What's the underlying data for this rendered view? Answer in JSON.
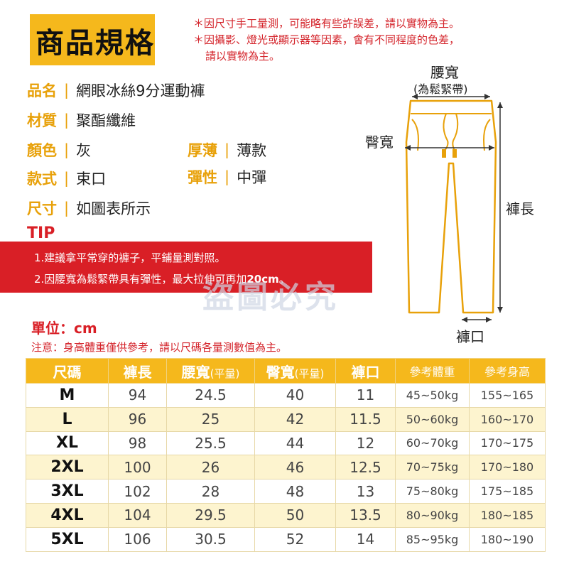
{
  "header": {
    "title": "商品規格"
  },
  "notes": [
    "＊因尺寸手工量測，可能略有些許誤差，請以實物為主。",
    "＊因攝影、燈光或顯示器等因素，會有不同程度的色差，",
    "請以實物為主。"
  ],
  "specs": {
    "name": {
      "label": "品名",
      "value": "網眼冰絲9分運動褲"
    },
    "material": {
      "label": "材質",
      "value": "聚酯纖維"
    },
    "color": {
      "label": "顏色",
      "value": "灰"
    },
    "thickness": {
      "label": "厚薄",
      "value": "薄款"
    },
    "style": {
      "label": "款式",
      "value": "束口"
    },
    "elasticity": {
      "label": "彈性",
      "value": "中彈"
    },
    "size": {
      "label": "尺寸",
      "value": "如圖表所示"
    },
    "separator": "|"
  },
  "tip": {
    "title": "TIP",
    "line1": "1.建議拿平常穿的褲子，平鋪量測對照。",
    "line2_prefix": "2.因腰寬為鬆緊帶具有彈性，最大拉伸可再加",
    "line2_bold": "20cm",
    "line2_suffix": "。"
  },
  "watermark": "盜圖必究",
  "diagram": {
    "waist": "腰寬",
    "waist_note": "(為鬆緊帶)",
    "hip": "臀寬",
    "length": "褲長",
    "hem": "褲口"
  },
  "unit": "單位：cm",
  "disclaimer": "注意：身高體重僅供參考，請以尺碼各量測數值為主。",
  "table": {
    "headers": {
      "size": "尺碼",
      "length": "褲長",
      "waist": "腰寬",
      "waist_sub": "(平量)",
      "hip": "臀寬",
      "hip_sub": "(平量)",
      "hem": "褲口",
      "weight": "參考體重",
      "height": "參考身高"
    },
    "rows": [
      {
        "size": "M",
        "length": "94",
        "waist": "24.5",
        "hip": "40",
        "hem": "11",
        "weight": "45~50kg",
        "height": "155~165"
      },
      {
        "size": "L",
        "length": "96",
        "waist": "25",
        "hip": "42",
        "hem": "11.5",
        "weight": "50~60kg",
        "height": "160~170"
      },
      {
        "size": "XL",
        "length": "98",
        "waist": "25.5",
        "hip": "44",
        "hem": "12",
        "weight": "60~70kg",
        "height": "170~175"
      },
      {
        "size": "2XL",
        "length": "100",
        "waist": "26",
        "hip": "46",
        "hem": "12.5",
        "weight": "70~75kg",
        "height": "170~180"
      },
      {
        "size": "3XL",
        "length": "102",
        "waist": "28",
        "hip": "48",
        "hem": "13",
        "weight": "75~80kg",
        "height": "175~185"
      },
      {
        "size": "4XL",
        "length": "104",
        "waist": "29.5",
        "hip": "50",
        "hem": "13.5",
        "weight": "80~90kg",
        "height": "180~185"
      },
      {
        "size": "5XL",
        "length": "106",
        "waist": "30.5",
        "hip": "52",
        "hem": "14",
        "weight": "85~95kg",
        "height": "180~190"
      }
    ]
  },
  "colors": {
    "accent": "#f5b81c",
    "label": "#e8a10a",
    "red": "#d91f26",
    "row_alt": "#fdf4cf"
  }
}
